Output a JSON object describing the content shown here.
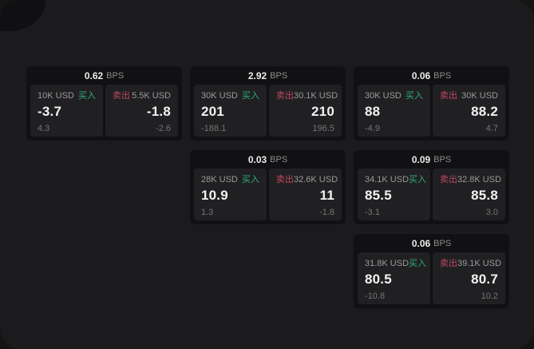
{
  "labels": {
    "unit": "BPS",
    "buy": "买入",
    "sell": "卖出"
  },
  "colors": {
    "background": "#141414",
    "panel": "#1b1b1d",
    "card": "#111113",
    "tile": "#202022",
    "buy_green": "#2fae7d",
    "sell_red": "#bd4760"
  },
  "cards": [
    {
      "row": 0,
      "col": 0,
      "bps": "0.62",
      "buy": {
        "size": "10K USD",
        "price": "-3.7",
        "delta": "4.3"
      },
      "sell": {
        "size": "5.5K USD",
        "price": "-1.8",
        "delta": "-2.6"
      }
    },
    {
      "row": 0,
      "col": 1,
      "bps": "2.92",
      "buy": {
        "size": "30K USD",
        "price": "201",
        "delta": "-188.1"
      },
      "sell": {
        "size": "30.1K USD",
        "price": "210",
        "delta": "196.5"
      }
    },
    {
      "row": 0,
      "col": 2,
      "bps": "0.06",
      "buy": {
        "size": "30K USD",
        "price": "88",
        "delta": "-4.9"
      },
      "sell": {
        "size": "30K USD",
        "price": "88.2",
        "delta": "4.7"
      }
    },
    {
      "row": 1,
      "col": 1,
      "bps": "0.03",
      "buy": {
        "size": "28K USD",
        "price": "10.9",
        "delta": "1.3"
      },
      "sell": {
        "size": "32.6K USD",
        "price": "11",
        "delta": "-1.8"
      }
    },
    {
      "row": 1,
      "col": 2,
      "bps": "0.09",
      "buy": {
        "size": "34.1K USD",
        "price": "85.5",
        "delta": "-3.1"
      },
      "sell": {
        "size": "32.8K USD",
        "price": "85.8",
        "delta": "3.0"
      }
    },
    {
      "row": 2,
      "col": 2,
      "bps": "0.06",
      "buy": {
        "size": "31.8K USD",
        "price": "80.5",
        "delta": "-10.8"
      },
      "sell": {
        "size": "39.1K USD",
        "price": "80.7",
        "delta": "10.2"
      }
    }
  ]
}
